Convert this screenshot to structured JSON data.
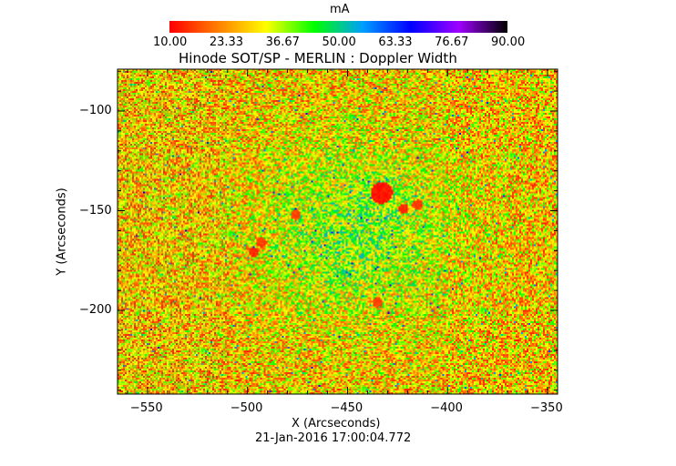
{
  "chart_data": {
    "type": "heatmap",
    "title": "Hinode SOT/SP - MERLIN : Doppler Width",
    "xlabel": "X (Arcseconds)",
    "ylabel": "Y (Arcseconds)",
    "footer": "21-Jan-2016 17:00:04.772",
    "xlim": [
      -565,
      -345
    ],
    "ylim": [
      -242,
      -79
    ],
    "x_ticks": [
      -550,
      -500,
      -450,
      -400,
      -350
    ],
    "y_ticks": [
      -100,
      -150,
      -200
    ],
    "colorbar": {
      "label": "mA",
      "range": [
        10,
        90
      ],
      "ticks": [
        "10.00",
        "23.33",
        "36.67",
        "50.00",
        "63.33",
        "76.67",
        "90.00"
      ],
      "colormap": [
        "#ff0000",
        "#ff8000",
        "#ffff00",
        "#00ff00",
        "#00a0ff",
        "#0000ff",
        "#a000ff",
        "#000000"
      ]
    },
    "features": [
      {
        "name": "sunspot",
        "x": -433,
        "y": -141,
        "value": 10
      },
      {
        "name": "pore",
        "x": -497,
        "y": -171,
        "value": 12
      },
      {
        "name": "pore",
        "x": -493,
        "y": -166,
        "value": 14
      },
      {
        "name": "pore",
        "x": -422,
        "y": -149,
        "value": 12
      },
      {
        "name": "pore",
        "x": -415,
        "y": -147,
        "value": 13
      },
      {
        "name": "pore",
        "x": -476,
        "y": -152,
        "value": 14
      },
      {
        "name": "pore",
        "x": -435,
        "y": -196,
        "value": 14
      }
    ],
    "background_mean": 28,
    "quiet_region_mean": 40
  }
}
